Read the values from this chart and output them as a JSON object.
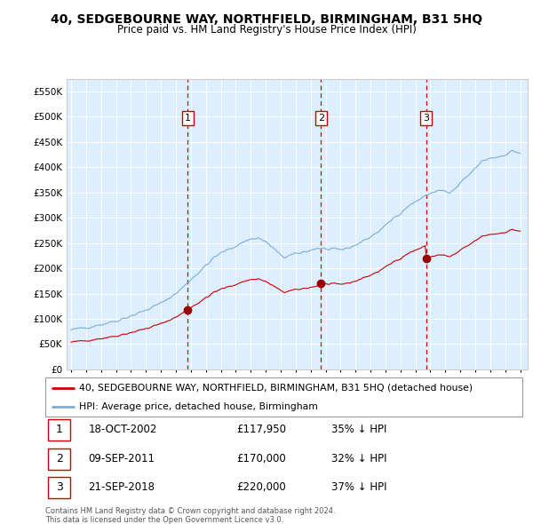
{
  "title": "40, SEDGEBOURNE WAY, NORTHFIELD, BIRMINGHAM, B31 5HQ",
  "subtitle": "Price paid vs. HM Land Registry's House Price Index (HPI)",
  "footer1": "Contains HM Land Registry data © Crown copyright and database right 2024.",
  "footer2": "This data is licensed under the Open Government Licence v3.0.",
  "legend_line1": "40, SEDGEBOURNE WAY, NORTHFIELD, BIRMINGHAM, B31 5HQ (detached house)",
  "legend_line2": "HPI: Average price, detached house, Birmingham",
  "table_rows": [
    [
      "1",
      "18-OCT-2002",
      "£117,950",
      "35% ↓ HPI"
    ],
    [
      "2",
      "09-SEP-2011",
      "£170,000",
      "32% ↓ HPI"
    ],
    [
      "3",
      "21-SEP-2018",
      "£220,000",
      "37% ↓ HPI"
    ]
  ],
  "sale_line_color": "#cc0000",
  "hpi_line_color": "#7dadd4",
  "background_color": "#ddeeff",
  "ylim": [
    0,
    575000
  ],
  "yticks": [
    0,
    50000,
    100000,
    150000,
    200000,
    250000,
    300000,
    350000,
    400000,
    450000,
    500000,
    550000
  ],
  "ytick_labels": [
    "£0",
    "£50K",
    "£100K",
    "£150K",
    "£200K",
    "£250K",
    "£300K",
    "£350K",
    "£400K",
    "£450K",
    "£500K",
    "£550K"
  ],
  "sale_dates_num": [
    2002.8,
    2011.69,
    2018.72
  ],
  "sale_prices": [
    117950,
    170000,
    220000
  ],
  "vline_color": "#cc0000",
  "marker_color": "#990000",
  "box_label_color": "#cc0000",
  "grid_color": "#ffffff",
  "spine_color": "#cccccc"
}
